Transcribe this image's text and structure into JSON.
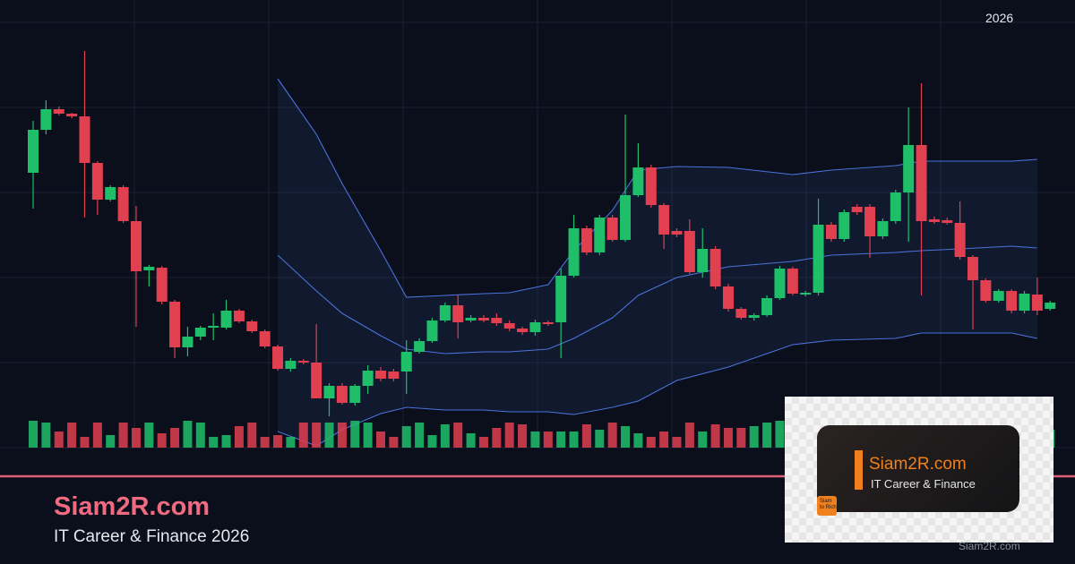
{
  "chart_data": {
    "type": "candlestick",
    "annotation": "2026",
    "ylim": [
      0,
      500
    ],
    "up_color": "#1fbf6a",
    "down_color": "#e0404f",
    "open": [
      307,
      355,
      378,
      373,
      370,
      318,
      277,
      291,
      253,
      198,
      201,
      163,
      112,
      124,
      134,
      134,
      153,
      141,
      130,
      113,
      88,
      97,
      95,
      55,
      69,
      50,
      69,
      86,
      85,
      85,
      107,
      119,
      142,
      159,
      142,
      145,
      145,
      139,
      133,
      129,
      140,
      140,
      192,
      245,
      218,
      257,
      232,
      282,
      313,
      271,
      242,
      242,
      196,
      222,
      180,
      155,
      145,
      148,
      167,
      200,
      171,
      173,
      249,
      233,
      269,
      269,
      236,
      253,
      285,
      338,
      255,
      254,
      251,
      213,
      187,
      164,
      175,
      153,
      171,
      155
    ],
    "high": [
      365,
      388,
      381,
      374,
      443,
      320,
      293,
      293,
      270,
      204,
      203,
      165,
      135,
      136,
      150,
      165,
      155,
      143,
      132,
      115,
      100,
      99,
      138,
      72,
      72,
      71,
      92,
      90,
      88,
      120,
      122,
      145,
      162,
      170,
      148,
      148,
      150,
      142,
      135,
      143,
      142,
      200,
      260,
      248,
      260,
      260,
      372,
      340,
      316,
      273,
      245,
      255,
      245,
      225,
      183,
      157,
      150,
      170,
      203,
      202,
      175,
      278,
      252,
      266,
      272,
      272,
      256,
      288,
      380,
      407,
      258,
      257,
      275,
      215,
      189,
      177,
      177,
      175,
      190,
      164
    ],
    "low": [
      267,
      350,
      371,
      368,
      257,
      260,
      275,
      251,
      135,
      180,
      160,
      100,
      102,
      120,
      120,
      132,
      139,
      128,
      111,
      86,
      85,
      93,
      55,
      35,
      48,
      47,
      60,
      74,
      74,
      60,
      105,
      117,
      140,
      122,
      140,
      140,
      136,
      130,
      126,
      125,
      136,
      100,
      190,
      215,
      215,
      230,
      230,
      280,
      268,
      222,
      235,
      194,
      190,
      177,
      152,
      143,
      142,
      146,
      165,
      170,
      169,
      170,
      230,
      230,
      260,
      212,
      233,
      250,
      230,
      170,
      250,
      249,
      210,
      132,
      162,
      162,
      150,
      150,
      148,
      153
    ],
    "close": [
      355,
      378,
      373,
      370,
      318,
      277,
      291,
      253,
      197,
      202,
      163,
      112,
      124,
      134,
      136,
      153,
      141,
      130,
      113,
      88,
      97,
      95,
      55,
      69,
      50,
      69,
      86,
      77,
      77,
      107,
      119,
      142,
      159,
      140,
      145,
      142,
      139,
      133,
      129,
      140,
      138,
      192,
      245,
      218,
      257,
      232,
      282,
      313,
      271,
      238,
      238,
      196,
      222,
      180,
      155,
      145,
      148,
      167,
      200,
      172,
      173,
      249,
      233,
      263,
      263,
      236,
      253,
      285,
      338,
      253,
      252,
      251,
      213,
      187,
      164,
      175,
      153,
      172,
      153,
      162
    ],
    "volume": [
      30,
      28,
      18,
      28,
      12,
      28,
      14,
      28,
      22,
      28,
      16,
      22,
      30,
      28,
      12,
      14,
      24,
      28,
      12,
      14,
      12,
      28,
      28,
      28,
      28,
      30,
      28,
      18,
      12,
      24,
      28,
      14,
      26,
      28,
      16,
      12,
      22,
      28,
      26,
      18,
      18,
      18,
      18,
      26,
      20,
      28,
      24,
      16,
      12,
      18,
      12,
      28,
      18,
      26,
      22,
      22,
      24,
      28,
      30,
      24,
      22,
      26,
      18,
      20,
      24,
      28,
      16,
      20,
      26,
      30,
      28,
      14,
      18,
      22,
      16,
      20,
      24,
      18,
      22,
      20
    ],
    "bands": {
      "color": "#4a72d8",
      "x": [
        19,
        22,
        24,
        27,
        29,
        32,
        35,
        37,
        40,
        42,
        45,
        47,
        50,
        54,
        59,
        62,
        67,
        69,
        72,
        76,
        78
      ],
      "upper": [
        412,
        350,
        295,
        220,
        168,
        170,
        172,
        173,
        182,
        220,
        265,
        310,
        314,
        313,
        305,
        310,
        315,
        320,
        320,
        320,
        322
      ],
      "middle": [
        215,
        175,
        150,
        125,
        110,
        105,
        107,
        107,
        110,
        122,
        145,
        170,
        190,
        202,
        208,
        215,
        218,
        220,
        222,
        225,
        223
      ],
      "lower": [
        18,
        2,
        20,
        38,
        45,
        42,
        42,
        40,
        40,
        37,
        45,
        52,
        75,
        90,
        115,
        120,
        122,
        128,
        128,
        128,
        122
      ]
    }
  },
  "brand": {
    "title": "Siam2R.com",
    "subtitle": "IT Career & Finance 2026"
  },
  "card": {
    "title": "Siam2R.com",
    "subtitle": "IT Career & Finance",
    "icon": [
      "Siam",
      "to Rich"
    ]
  },
  "watermark": "Siam2R.com"
}
